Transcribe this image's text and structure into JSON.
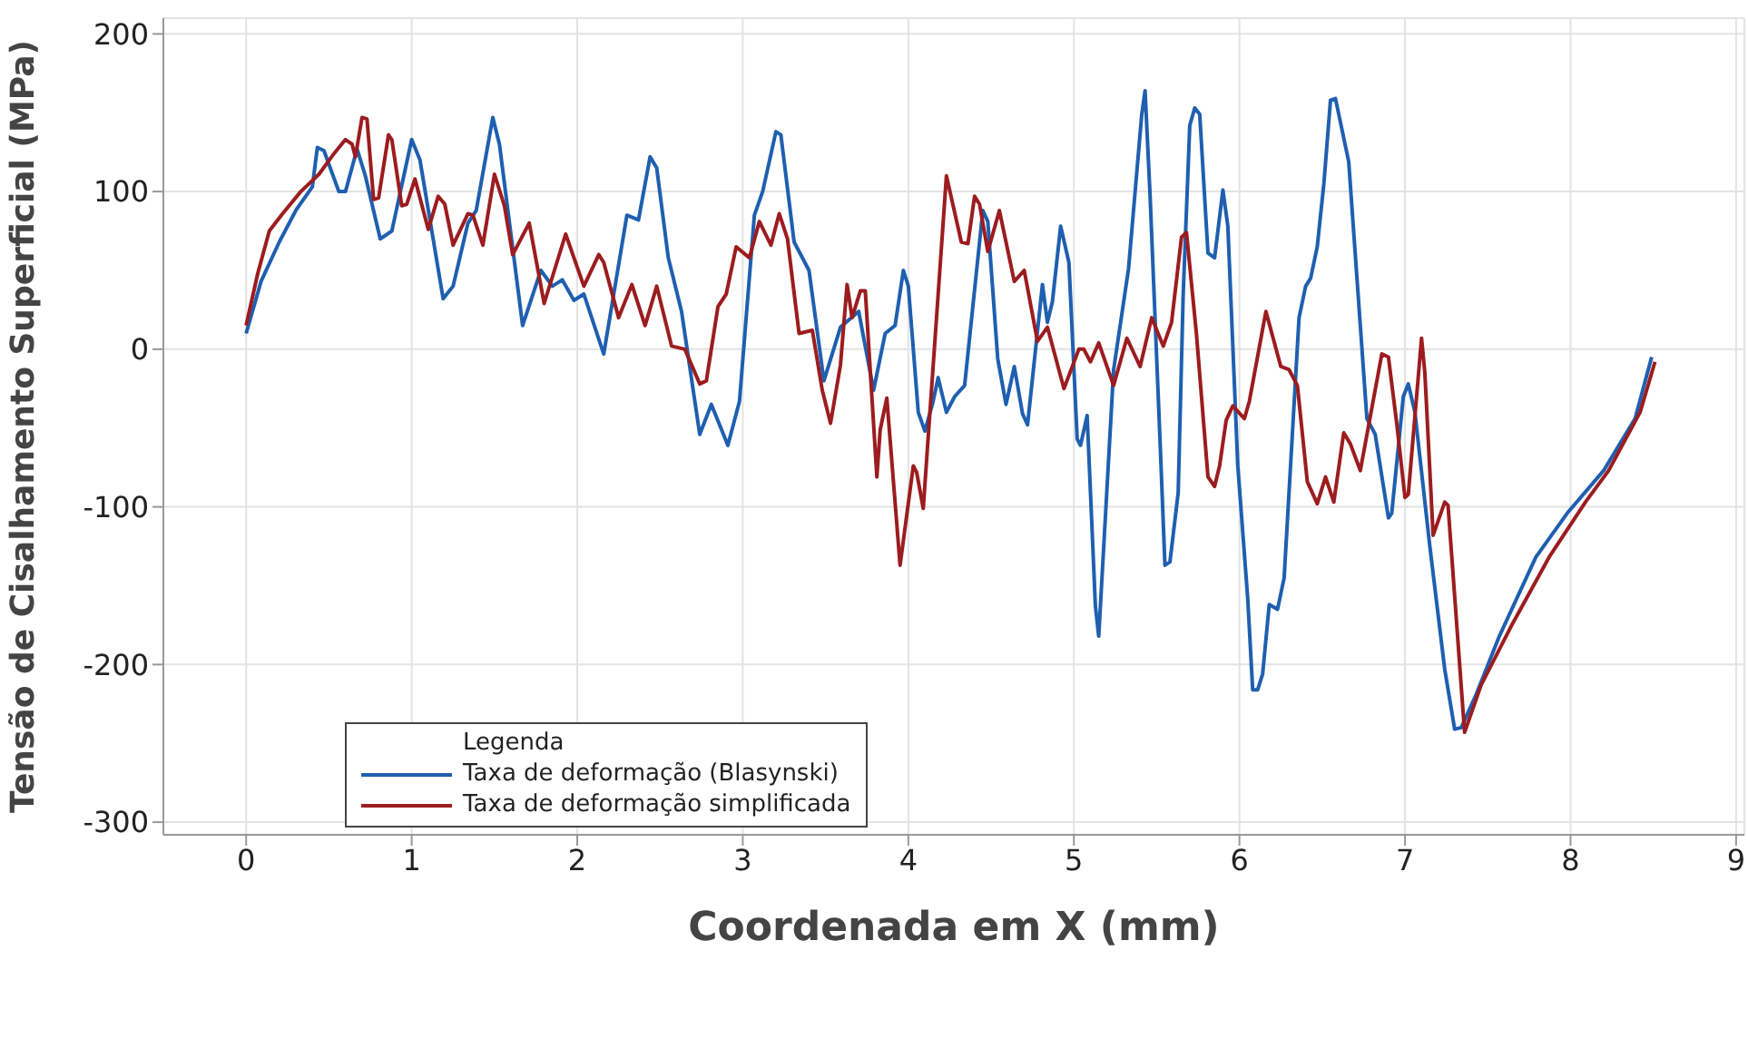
{
  "chart_data": {
    "type": "line",
    "xlabel": "Coordenada em X (mm)",
    "ylabel": "Tensão de Cisalhamento Superficial (MPa)",
    "legend_title": "Legenda",
    "xlim": [
      -0.5,
      9.05
    ],
    "xticks": [
      0,
      1,
      2,
      3,
      4,
      5,
      6,
      7,
      8,
      9
    ],
    "ylim": [
      -308,
      210
    ],
    "yticks": [
      -300,
      -200,
      -100,
      0,
      100,
      200
    ],
    "grid": true,
    "legend": "bottom left",
    "marker": "none",
    "line_style": "solid",
    "series": [
      {
        "name": "Taxa de deformação (Blasynski)",
        "color": "#1f5fb0",
        "x": [
          0,
          0.09,
          0.2,
          0.3,
          0.4,
          0.43,
          0.47,
          0.56,
          0.6,
          0.67,
          0.72,
          0.81,
          0.88,
          1.0,
          1.05,
          1.19,
          1.25,
          1.34,
          1.39,
          1.49,
          1.53,
          1.67,
          1.78,
          1.85,
          1.91,
          1.98,
          2.04,
          2.16,
          2.3,
          2.37,
          2.44,
          2.48,
          2.55,
          2.63,
          2.74,
          2.81,
          2.91,
          2.98,
          3.07,
          3.12,
          3.2,
          3.23,
          3.31,
          3.4,
          3.49,
          3.59,
          3.7,
          3.79,
          3.86,
          3.92,
          3.97,
          4.0,
          4.06,
          4.1,
          4.15,
          4.18,
          4.23,
          4.28,
          4.34,
          4.45,
          4.48,
          4.54,
          4.59,
          4.64,
          4.69,
          4.72,
          4.81,
          4.84,
          4.87,
          4.92,
          4.97,
          5.02,
          5.04,
          5.08,
          5.13,
          5.15,
          5.24,
          5.33,
          5.41,
          5.43,
          5.46,
          5.52,
          5.55,
          5.58,
          5.63,
          5.66,
          5.7,
          5.73,
          5.76,
          5.81,
          5.85,
          5.9,
          5.93,
          5.99,
          6.05,
          6.08,
          6.11,
          6.14,
          6.18,
          6.23,
          6.27,
          6.36,
          6.4,
          6.43,
          6.47,
          6.51,
          6.55,
          6.58,
          6.66,
          6.77,
          6.82,
          6.9,
          6.92,
          6.99,
          7.02,
          7.06,
          7.15,
          7.24,
          7.3,
          7.34,
          7.43,
          7.57,
          7.79,
          7.98,
          8.2,
          8.39,
          8.49
        ],
        "values": [
          10,
          43,
          68,
          88,
          103,
          128,
          126,
          100,
          100,
          127,
          110,
          70,
          75,
          133,
          120,
          32,
          40,
          80,
          88,
          147,
          130,
          15,
          50,
          40,
          44,
          31,
          35,
          -3,
          85,
          82,
          122,
          115,
          58,
          24,
          -54,
          -35,
          -61,
          -33,
          85,
          100,
          138,
          136,
          68,
          50,
          -20,
          14,
          24,
          -26,
          10,
          15,
          50,
          40,
          -40,
          -52,
          -33,
          -18,
          -40,
          -30,
          -23,
          88,
          81,
          -6,
          -35,
          -11,
          -41,
          -48,
          41,
          17,
          30,
          78,
          55,
          -57,
          -61,
          -42,
          -163,
          -182,
          -13,
          51,
          149,
          164,
          98,
          -57,
          -137,
          -135,
          -91,
          34,
          142,
          153,
          149,
          61,
          58,
          101,
          78,
          -74,
          -158,
          -216,
          -216,
          -206,
          -162,
          -165,
          -145,
          20,
          40,
          45,
          65,
          105,
          158,
          159,
          119,
          -44,
          -54,
          -107,
          -104,
          -30,
          -22,
          -40,
          -125,
          -203,
          -241,
          -240,
          -219,
          -182,
          -132,
          -104,
          -77,
          -44,
          -5
        ]
      },
      {
        "name": "Taxa de deformação simplificada",
        "color": "#9c1c1f",
        "x": [
          0,
          0.07,
          0.14,
          0.22,
          0.33,
          0.44,
          0.53,
          0.6,
          0.64,
          0.66,
          0.7,
          0.73,
          0.77,
          0.8,
          0.86,
          0.88,
          0.94,
          0.97,
          1.02,
          1.07,
          1.1,
          1.16,
          1.2,
          1.25,
          1.34,
          1.37,
          1.43,
          1.5,
          1.56,
          1.61,
          1.71,
          1.8,
          1.93,
          2.04,
          2.13,
          2.16,
          2.25,
          2.33,
          2.41,
          2.48,
          2.57,
          2.65,
          2.74,
          2.78,
          2.85,
          2.9,
          2.96,
          3.04,
          3.1,
          3.17,
          3.22,
          3.27,
          3.34,
          3.42,
          3.48,
          3.53,
          3.59,
          3.63,
          3.66,
          3.71,
          3.74,
          3.81,
          3.83,
          3.87,
          3.95,
          4.03,
          4.05,
          4.09,
          4.23,
          4.32,
          4.36,
          4.4,
          4.43,
          4.48,
          4.55,
          4.64,
          4.7,
          4.78,
          4.84,
          4.94,
          5.03,
          5.06,
          5.1,
          5.15,
          5.24,
          5.32,
          5.4,
          5.47,
          5.54,
          5.59,
          5.65,
          5.68,
          5.74,
          5.81,
          5.85,
          5.88,
          5.92,
          5.96,
          6.03,
          6.06,
          6.16,
          6.25,
          6.3,
          6.35,
          6.41,
          6.47,
          6.52,
          6.57,
          6.63,
          6.67,
          6.73,
          6.86,
          6.9,
          6.95,
          7.0,
          7.02,
          7.1,
          7.12,
          7.17,
          7.24,
          7.26,
          7.36,
          7.46,
          7.65,
          7.87,
          8.09,
          8.23,
          8.42,
          8.51
        ],
        "values": [
          15,
          48,
          75,
          86,
          100,
          111,
          124,
          133,
          130,
          122,
          147,
          146,
          95,
          96,
          136,
          133,
          91,
          92,
          108,
          88,
          76,
          97,
          92,
          66,
          86,
          85,
          66,
          111,
          91,
          60,
          80,
          29,
          73,
          40,
          60,
          55,
          20,
          41,
          15,
          40,
          2,
          0,
          -22,
          -20,
          27,
          35,
          65,
          58,
          81,
          66,
          86,
          70,
          10,
          12,
          -26,
          -47,
          -10,
          41,
          20,
          37,
          37,
          -81,
          -51,
          -31,
          -137,
          -74,
          -78,
          -101,
          110,
          68,
          67,
          97,
          92,
          62,
          88,
          43,
          50,
          5,
          14,
          -25,
          0,
          0,
          -8,
          4,
          -23,
          7,
          -11,
          20,
          2,
          17,
          71,
          74,
          10,
          -81,
          -87,
          -74,
          -45,
          -36,
          -44,
          -33,
          24,
          -11,
          -13,
          -23,
          -84,
          -98,
          -81,
          -97,
          -53,
          -60,
          -77,
          -3,
          -5,
          -47,
          -94,
          -92,
          7,
          -15,
          -118,
          -97,
          -99,
          -243,
          -213,
          -174,
          -132,
          -97,
          -77,
          -40,
          -8
        ]
      }
    ]
  }
}
